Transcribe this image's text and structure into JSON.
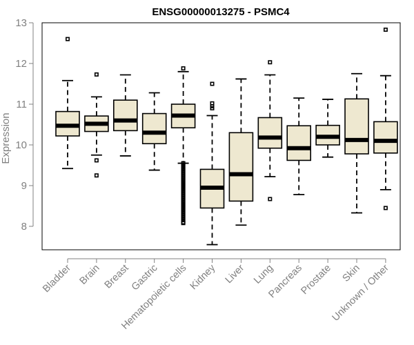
{
  "chart_data": {
    "type": "boxplot",
    "title": "ENSG00000013275 - PSMC4",
    "xlabel": "",
    "ylabel": "Expression",
    "ylim": [
      7.5,
      13.0
    ],
    "yticks": [
      8,
      9,
      10,
      11,
      12,
      13
    ],
    "grid": false,
    "legend": "none",
    "colors": {
      "box_fill": "#EEE8D0",
      "stroke": "#000000",
      "axis": "#808080"
    },
    "categories": [
      "Bladder",
      "Brain",
      "Breast",
      "Gastric",
      "Hematopoietic cells",
      "Kidney",
      "Liver",
      "Lung",
      "Pancreas",
      "Prostate",
      "Skin",
      "Unknown / Other"
    ],
    "boxes": [
      {
        "category": "Bladder",
        "whisker_low": 9.42,
        "q1": 10.22,
        "median": 10.47,
        "q3": 10.82,
        "whisker_high": 11.58,
        "outliers": [
          12.6
        ]
      },
      {
        "category": "Brain",
        "whisker_low": 9.75,
        "q1": 10.33,
        "median": 10.52,
        "q3": 10.71,
        "whisker_high": 11.18,
        "outliers": [
          11.73,
          9.62,
          9.25
        ]
      },
      {
        "category": "Breast",
        "whisker_low": 9.73,
        "q1": 10.35,
        "median": 10.6,
        "q3": 11.1,
        "whisker_high": 11.72,
        "outliers": []
      },
      {
        "category": "Gastric",
        "whisker_low": 9.38,
        "q1": 10.03,
        "median": 10.3,
        "q3": 10.77,
        "whisker_high": 11.28,
        "outliers": []
      },
      {
        "category": "Hematopoietic cells",
        "whisker_low": 9.55,
        "q1": 10.42,
        "median": 10.72,
        "q3": 11.0,
        "whisker_high": 11.8,
        "outliers": [
          11.88,
          9.55,
          9.5,
          9.45,
          9.4,
          9.35,
          9.3,
          9.25,
          9.2,
          9.15,
          9.1,
          9.05,
          9.0,
          8.95,
          8.9,
          8.85,
          8.8,
          8.75,
          8.7,
          8.65,
          8.6,
          8.55,
          8.5,
          8.45,
          8.4,
          8.35,
          8.3,
          8.25,
          8.2,
          8.15,
          8.1,
          8.08
        ]
      },
      {
        "category": "Kidney",
        "whisker_low": 7.55,
        "q1": 8.45,
        "median": 8.95,
        "q3": 9.4,
        "whisker_high": 10.72,
        "outliers": [
          11.5,
          11.02,
          10.95,
          10.9
        ]
      },
      {
        "category": "Liver",
        "whisker_low": 8.03,
        "q1": 8.62,
        "median": 9.28,
        "q3": 10.3,
        "whisker_high": 11.62,
        "outliers": []
      },
      {
        "category": "Lung",
        "whisker_low": 9.22,
        "q1": 9.92,
        "median": 10.18,
        "q3": 10.67,
        "whisker_high": 11.72,
        "outliers": [
          12.03,
          8.67
        ]
      },
      {
        "category": "Pancreas",
        "whisker_low": 8.78,
        "q1": 9.62,
        "median": 9.92,
        "q3": 10.47,
        "whisker_high": 11.15,
        "outliers": []
      },
      {
        "category": "Prostate",
        "whisker_low": 9.7,
        "q1": 10.0,
        "median": 10.2,
        "q3": 10.48,
        "whisker_high": 11.12,
        "outliers": []
      },
      {
        "category": "Skin",
        "whisker_low": 8.33,
        "q1": 9.78,
        "median": 10.12,
        "q3": 11.13,
        "whisker_high": 11.75,
        "outliers": []
      },
      {
        "category": "Unknown / Other",
        "whisker_low": 8.9,
        "q1": 9.8,
        "median": 10.1,
        "q3": 10.57,
        "whisker_high": 11.7,
        "outliers": [
          12.83,
          8.45
        ]
      }
    ]
  }
}
